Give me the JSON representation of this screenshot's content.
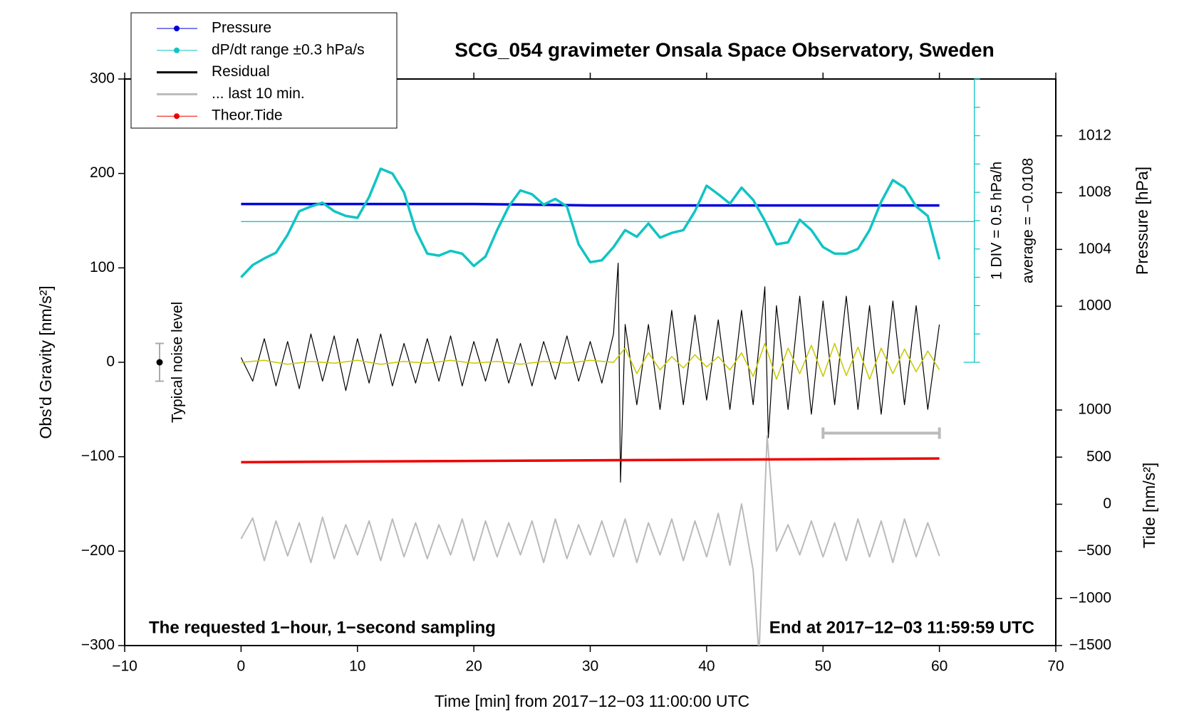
{
  "chart_data": {
    "type": "line",
    "title": "SCG_054 gravimeter Onsala Space Observatory, Sweden",
    "x_label": "Time [min] from 2017−12−03 11:00:00 UTC",
    "y_label": "Obs'd Gravity [nm/s²]",
    "y2_label": "Pressure [hPa]",
    "y3_label": "Tide [nm/s²]",
    "note_left": "The requested 1−hour, 1−second sampling",
    "note_right": "End at 2017−12−03 11:59:59 UTC",
    "xlim": [
      -10,
      70
    ],
    "xticks": [
      {
        "value": -10,
        "label": "−10"
      },
      0,
      10,
      20,
      30,
      40,
      50,
      60,
      70
    ],
    "ylim": [
      -300,
      300
    ],
    "yticks": [
      {
        "value": -300,
        "label": "−300"
      },
      {
        "value": -200,
        "label": "−200"
      },
      {
        "value": -100,
        "label": "−100"
      },
      0,
      100,
      200,
      300
    ],
    "y2lim": [
      976.1,
      1016.0
    ],
    "y2ticks": [
      1000,
      1004,
      1008,
      1012
    ],
    "y3lim": [
      -1500,
      4513
    ],
    "y3ticks": [
      {
        "value": -1500,
        "label": "−1500"
      },
      {
        "value": -1000,
        "label": "−1000"
      },
      {
        "value": -500,
        "label": "−500"
      },
      0,
      500,
      1000
    ],
    "dpdt_reference": {
      "value": 149,
      "scale_label": "1 DIV = 0.5 hPa/h",
      "average_label": "average = −0.0108"
    },
    "noise": {
      "label": "Typical noise level",
      "x": -7,
      "value": 0,
      "error": 20
    },
    "last10_bar": {
      "x": [
        50,
        60
      ],
      "value": -75
    },
    "series": [
      {
        "name": "Pressure",
        "color": "#0000dd",
        "axis": "y2",
        "marker": true,
        "width": 3.5,
        "x": [
          0,
          10,
          20,
          30,
          40,
          50,
          60
        ],
        "values": [
          1007.2,
          1007.2,
          1007.2,
          1007.1,
          1007.1,
          1007.1,
          1007.1
        ]
      },
      {
        "name": "dP/dt range ±0.3 hPa/s",
        "color": "#11c4c4",
        "axis": "y",
        "marker": true,
        "width": 3.5,
        "x": [
          0,
          1,
          2,
          3,
          4,
          5,
          6,
          7,
          8,
          9,
          10,
          11,
          12,
          13,
          14,
          15,
          16,
          17,
          18,
          19,
          20,
          21,
          22,
          23,
          24,
          25,
          26,
          27,
          28,
          29,
          30,
          31,
          32,
          33,
          34,
          35,
          36,
          37,
          38,
          39,
          40,
          41,
          42,
          43,
          44,
          45,
          46,
          47,
          48,
          49,
          50,
          51,
          52,
          53,
          54,
          55,
          56,
          57,
          58,
          59,
          60
        ],
        "values": [
          90,
          103,
          110,
          116,
          135,
          160,
          165,
          169,
          160,
          155,
          153,
          175,
          205,
          200,
          180,
          140,
          115,
          113,
          118,
          115,
          102,
          112,
          140,
          165,
          182,
          178,
          167,
          173,
          165,
          125,
          106,
          108,
          122,
          140,
          133,
          147,
          132,
          137,
          140,
          160,
          187,
          178,
          168,
          185,
          172,
          150,
          125,
          127,
          151,
          140,
          122,
          115,
          115,
          120,
          140,
          170,
          193,
          185,
          165,
          155,
          109
        ]
      },
      {
        "name": "Residual",
        "color": "#000000",
        "axis": "y",
        "marker": false,
        "width": 1.2,
        "x": [
          0,
          1,
          2,
          3,
          4,
          5,
          6,
          7,
          8,
          9,
          10,
          11,
          12,
          13,
          14,
          15,
          16,
          17,
          18,
          19,
          20,
          21,
          22,
          23,
          24,
          25,
          26,
          27,
          28,
          29,
          30,
          31,
          32,
          32.4,
          32.6,
          33,
          34,
          35,
          36,
          37,
          38,
          39,
          40,
          41,
          42,
          43,
          44,
          45,
          45.3,
          46,
          47,
          48,
          49,
          50,
          51,
          52,
          53,
          54,
          55,
          56,
          57,
          58,
          59,
          60
        ],
        "values": [
          5,
          -20,
          25,
          -25,
          22,
          -28,
          30,
          -20,
          28,
          -30,
          25,
          -22,
          30,
          -25,
          20,
          -22,
          25,
          -20,
          28,
          -25,
          22,
          -20,
          25,
          -22,
          20,
          -25,
          22,
          -18,
          28,
          -20,
          22,
          -22,
          30,
          105,
          -127,
          40,
          -45,
          40,
          -50,
          55,
          -45,
          50,
          -40,
          45,
          -50,
          55,
          -45,
          80,
          -80,
          60,
          -50,
          70,
          -55,
          65,
          -45,
          70,
          -50,
          60,
          -55,
          65,
          -45,
          60,
          -50,
          40
        ]
      },
      {
        "color": "#c8c800",
        "axis": "y",
        "marker": false,
        "width": 1.5,
        "x": [
          0,
          2,
          4,
          6,
          8,
          10,
          12,
          14,
          16,
          18,
          20,
          22,
          24,
          26,
          28,
          30,
          32,
          33,
          34,
          35,
          36,
          37,
          38,
          39,
          40,
          41,
          42,
          43,
          44,
          45,
          46,
          47,
          48,
          49,
          50,
          51,
          52,
          53,
          54,
          55,
          56,
          57,
          58,
          59,
          60
        ],
        "values": [
          0,
          2,
          -2,
          1,
          -1,
          2,
          -2,
          1,
          -1,
          2,
          -1,
          1,
          -2,
          1,
          -1,
          2,
          0,
          15,
          -12,
          10,
          -8,
          6,
          -6,
          8,
          -5,
          6,
          -8,
          10,
          -15,
          20,
          -18,
          15,
          -12,
          18,
          -15,
          20,
          -14,
          16,
          -18,
          15,
          -12,
          14,
          -10,
          12,
          -8
        ]
      },
      {
        "name": "... last 10 min.",
        "color": "#bbbbbb",
        "axis": "y",
        "marker": false,
        "width": 2,
        "x": [
          0,
          1,
          2,
          3,
          4,
          5,
          6,
          7,
          8,
          9,
          10,
          11,
          12,
          13,
          14,
          15,
          16,
          17,
          18,
          19,
          20,
          21,
          22,
          23,
          24,
          25,
          26,
          27,
          28,
          29,
          30,
          31,
          32,
          33,
          34,
          35,
          36,
          37,
          38,
          39,
          40,
          41,
          42,
          43,
          44,
          44.5,
          45,
          45.2,
          46,
          47,
          48,
          49,
          50,
          51,
          52,
          53,
          54,
          55,
          56,
          57,
          58,
          59,
          60
        ],
        "values": [
          -187,
          -165,
          -210,
          -168,
          -205,
          -170,
          -212,
          -164,
          -208,
          -172,
          -204,
          -168,
          -210,
          -166,
          -206,
          -170,
          -208,
          -172,
          -204,
          -166,
          -210,
          -168,
          -206,
          -170,
          -204,
          -168,
          -212,
          -166,
          -208,
          -172,
          -204,
          -168,
          -206,
          -166,
          -212,
          -170,
          -204,
          -166,
          -210,
          -168,
          -206,
          -160,
          -215,
          -150,
          -220,
          -311,
          -140,
          -78,
          -200,
          -172,
          -204,
          -168,
          -206,
          -170,
          -210,
          -166,
          -206,
          -168,
          -212,
          -166,
          -206,
          -170,
          -205
        ]
      },
      {
        "name": "Theor.Tide",
        "color": "#ee0000",
        "axis": "y3",
        "marker": true,
        "width": 3.5,
        "x": [
          0,
          12,
          24,
          36,
          48,
          60
        ],
        "values": [
          446,
          455,
          462,
          470,
          478,
          486
        ]
      }
    ]
  }
}
